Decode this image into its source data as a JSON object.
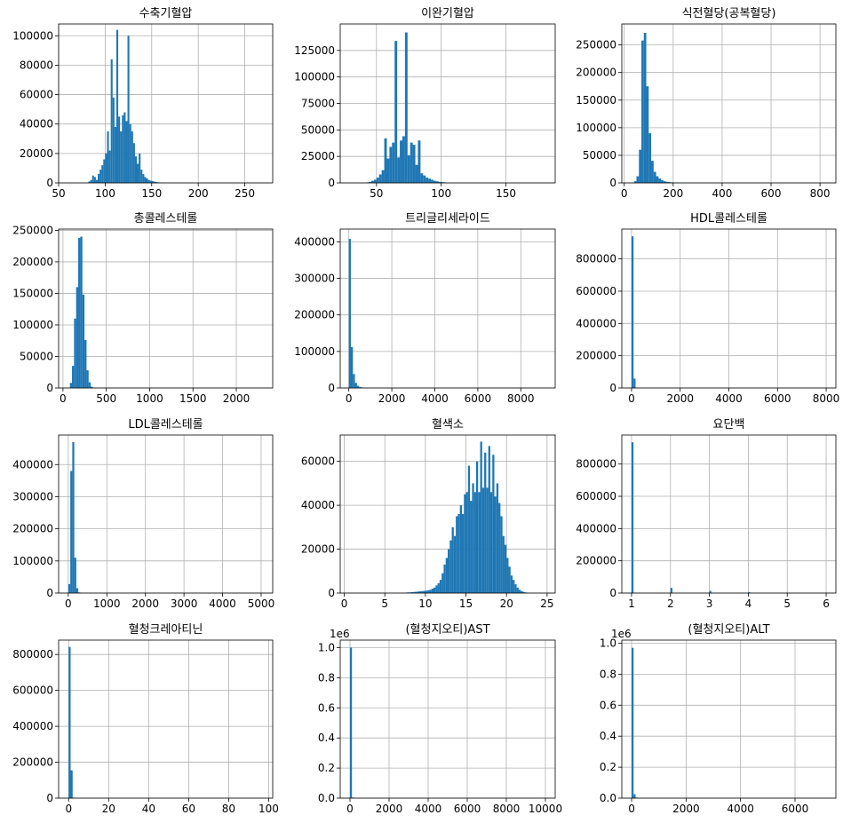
{
  "colors": {
    "bar": "#1f77b4",
    "grid": "#b0b0b0",
    "axis": "#000000"
  },
  "chart_data": [
    {
      "type": "bar",
      "title": "수축기혈압",
      "xlim": [
        50,
        280
      ],
      "ylim": [
        0,
        108000
      ],
      "grid": true,
      "xticks": [
        50,
        100,
        150,
        200,
        250
      ],
      "xtick_labels": [
        "50",
        "100",
        "150",
        "200",
        "250"
      ],
      "yticks": [
        0,
        20000,
        40000,
        60000,
        80000,
        100000
      ],
      "ytick_labels": [
        "0",
        "20000",
        "40000",
        "60000",
        "80000",
        "100000"
      ],
      "bin_start": 82,
      "bin_width": 2,
      "values": [
        1000,
        2000,
        5000,
        4000,
        2000,
        6000,
        9000,
        12000,
        16000,
        20000,
        35000,
        22000,
        84000,
        58000,
        38000,
        104000,
        45000,
        35000,
        46000,
        48000,
        42000,
        100000,
        40000,
        35000,
        27000,
        18000,
        13000,
        20000,
        9000,
        6000,
        4000,
        3000,
        2000,
        1500,
        1200,
        800,
        600,
        400,
        300,
        200
      ]
    },
    {
      "type": "bar",
      "title": "이완기혈압",
      "xlim": [
        22,
        188
      ],
      "ylim": [
        0,
        150000
      ],
      "grid": true,
      "xticks": [
        50,
        100,
        150
      ],
      "xtick_labels": [
        "50",
        "100",
        "150"
      ],
      "yticks": [
        0,
        25000,
        50000,
        75000,
        100000,
        125000
      ],
      "ytick_labels": [
        "0",
        "25000",
        "50000",
        "75000",
        "100000",
        "125000"
      ],
      "bin_start": 42,
      "bin_width": 2,
      "values": [
        500,
        1000,
        2000,
        3000,
        5000,
        8000,
        12000,
        42000,
        23000,
        34000,
        38000,
        134000,
        24000,
        40000,
        44000,
        142000,
        26000,
        38000,
        36000,
        17000,
        40000,
        9000,
        7000,
        5000,
        4000,
        3000,
        2000,
        1500,
        1000,
        700,
        500,
        300,
        200,
        100
      ]
    },
    {
      "type": "bar",
      "title": "식전혈당(공복혈당)",
      "xlim": [
        -10,
        865
      ],
      "ylim": [
        0,
        288000
      ],
      "grid": true,
      "xticks": [
        0,
        200,
        400,
        600,
        800
      ],
      "xtick_labels": [
        "0",
        "200",
        "400",
        "600",
        "800"
      ],
      "yticks": [
        0,
        50000,
        100000,
        150000,
        200000,
        250000
      ],
      "ytick_labels": [
        "0",
        "50000",
        "100000",
        "150000",
        "200000",
        "250000"
      ],
      "bin_start": 40,
      "bin_width": 10,
      "values": [
        3000,
        12000,
        60000,
        258000,
        272000,
        175000,
        90000,
        40000,
        20000,
        12000,
        8000,
        5000,
        3000,
        2000,
        1500,
        1000,
        700,
        500,
        300,
        200
      ]
    },
    {
      "type": "bar",
      "title": "총콜레스테롤",
      "xlim": [
        -50,
        2420
      ],
      "ylim": [
        0,
        252000
      ],
      "grid": true,
      "xticks": [
        0,
        500,
        1000,
        1500,
        2000
      ],
      "xtick_labels": [
        "0",
        "500",
        "1000",
        "1500",
        "2000"
      ],
      "yticks": [
        0,
        50000,
        100000,
        150000,
        200000,
        250000
      ],
      "ytick_labels": [
        "0",
        "50000",
        "100000",
        "150000",
        "200000",
        "250000"
      ],
      "bin_start": 80,
      "bin_width": 24,
      "values": [
        8000,
        35000,
        110000,
        160000,
        238000,
        240000,
        148000,
        76000,
        28000,
        9000,
        2000,
        500
      ]
    },
    {
      "type": "bar",
      "title": "트리글리세라이드",
      "xlim": [
        -400,
        9600
      ],
      "ylim": [
        0,
        435000
      ],
      "grid": true,
      "xticks": [
        0,
        2000,
        4000,
        6000,
        8000
      ],
      "xtick_labels": [
        "0",
        "2000",
        "4000",
        "6000",
        "8000"
      ],
      "yticks": [
        0,
        100000,
        200000,
        300000,
        400000
      ],
      "ytick_labels": [
        "0",
        "100000",
        "200000",
        "300000",
        "400000"
      ],
      "bin_start": 0,
      "bin_width": 95,
      "values": [
        408000,
        112000,
        38000,
        14000,
        6000,
        3000,
        1500,
        800,
        400
      ]
    },
    {
      "type": "bar",
      "title": "HDL콜레스테롤",
      "xlim": [
        -400,
        8400
      ],
      "ylim": [
        0,
        985000
      ],
      "grid": true,
      "xticks": [
        0,
        2000,
        4000,
        6000,
        8000
      ],
      "xtick_labels": [
        "0",
        "2000",
        "4000",
        "6000",
        "8000"
      ],
      "yticks": [
        0,
        200000,
        400000,
        600000,
        800000
      ],
      "ytick_labels": [
        "0",
        "200000",
        "400000",
        "600000",
        "800000"
      ],
      "bin_start": 0,
      "bin_width": 82,
      "values": [
        940000,
        58000,
        2000,
        500
      ]
    },
    {
      "type": "bar",
      "title": "LDL콜레스테롤",
      "xlim": [
        -250,
        5300
      ],
      "ylim": [
        0,
        492000
      ],
      "grid": true,
      "xticks": [
        0,
        1000,
        2000,
        3000,
        4000,
        5000
      ],
      "xtick_labels": [
        "0",
        "1000",
        "2000",
        "3000",
        "4000",
        "5000"
      ],
      "yticks": [
        0,
        100000,
        200000,
        300000,
        400000
      ],
      "ytick_labels": [
        "0",
        "100000",
        "200000",
        "300000",
        "400000"
      ],
      "bin_start": 0,
      "bin_width": 52,
      "values": [
        28000,
        380000,
        470000,
        110000,
        15000,
        2000,
        500
      ]
    },
    {
      "type": "bar",
      "title": "혈색소",
      "xlim": [
        -0.5,
        26
      ],
      "ylim": [
        0,
        72000
      ],
      "grid": true,
      "xticks": [
        0,
        5,
        10,
        15,
        20,
        25
      ],
      "xtick_labels": [
        "0",
        "5",
        "10",
        "15",
        "20",
        "25"
      ],
      "yticks": [
        0,
        20000,
        40000,
        60000
      ],
      "ytick_labels": [
        "0",
        "20000",
        "40000",
        "60000"
      ],
      "bin_start": 7.5,
      "bin_width": 0.25,
      "values": [
        200,
        300,
        300,
        400,
        500,
        600,
        700,
        800,
        900,
        1000,
        1100,
        1300,
        1500,
        2000,
        2500,
        3500,
        4500,
        6000,
        9000,
        13000,
        16000,
        20000,
        24000,
        30000,
        26000,
        35000,
        36000,
        40000,
        36000,
        45000,
        46000,
        58000,
        42000,
        50000,
        46000,
        60000,
        46000,
        69000,
        48000,
        64000,
        48000,
        67000,
        46000,
        63000,
        44000,
        50000,
        41000,
        35000,
        26000,
        22000,
        16000,
        12000,
        8000,
        6000,
        4000,
        2500,
        1500,
        900,
        500,
        300
      ]
    },
    {
      "type": "bar",
      "title": "요단백",
      "xlim": [
        0.75,
        6.25
      ],
      "ylim": [
        0,
        980000
      ],
      "grid": true,
      "xticks": [
        1,
        2,
        3,
        4,
        5,
        6
      ],
      "xtick_labels": [
        "1",
        "2",
        "3",
        "4",
        "5",
        "6"
      ],
      "yticks": [
        0,
        200000,
        400000,
        600000,
        800000
      ],
      "ytick_labels": [
        "0",
        "200000",
        "400000",
        "600000",
        "800000"
      ],
      "bin_start": 1,
      "bin_width": 0.05,
      "bars": [
        {
          "x": 1,
          "value": 935000
        },
        {
          "x": 2,
          "value": 32000
        },
        {
          "x": 3,
          "value": 14000
        },
        {
          "x": 4,
          "value": 5000
        },
        {
          "x": 5,
          "value": 2000
        },
        {
          "x": 6,
          "value": 1000
        }
      ]
    },
    {
      "type": "bar",
      "title": "혈청크레아티닌",
      "xlim": [
        -5,
        102
      ],
      "ylim": [
        0,
        880000
      ],
      "grid": true,
      "xticks": [
        0,
        20,
        40,
        60,
        80,
        100
      ],
      "xtick_labels": [
        "0",
        "20",
        "40",
        "60",
        "80",
        "100"
      ],
      "yticks": [
        0,
        200000,
        400000,
        600000,
        800000
      ],
      "ytick_labels": [
        "0",
        "200000",
        "400000",
        "600000",
        "800000"
      ],
      "bin_start": 0,
      "bin_width": 1,
      "values": [
        842000,
        155000,
        3000,
        500
      ]
    },
    {
      "type": "bar",
      "title": "(혈청지오티)AST",
      "xlim": [
        -500,
        10500
      ],
      "ylim": [
        0,
        1.05
      ],
      "grid": true,
      "offset_label": "1e6",
      "xticks": [
        0,
        2000,
        4000,
        6000,
        8000,
        10000
      ],
      "xtick_labels": [
        "0",
        "2000",
        "4000",
        "6000",
        "8000",
        "10000"
      ],
      "yticks": [
        0,
        0.2,
        0.4,
        0.6,
        0.8,
        1.0
      ],
      "ytick_labels": [
        "0.0",
        "0.2",
        "0.4",
        "0.6",
        "0.8",
        "1.0"
      ],
      "bin_start": 0,
      "bin_width": 100,
      "values": [
        1.0,
        0.004,
        0.001
      ]
    },
    {
      "type": "bar",
      "title": "(혈청지오티)ALT",
      "xlim": [
        -360,
        7500
      ],
      "ylim": [
        0,
        1.02
      ],
      "grid": true,
      "offset_label": "1e6",
      "xticks": [
        0,
        2000,
        4000,
        6000
      ],
      "xtick_labels": [
        "0",
        "2000",
        "4000",
        "6000"
      ],
      "yticks": [
        0,
        0.2,
        0.4,
        0.6,
        0.8,
        1.0
      ],
      "ytick_labels": [
        "0.0",
        "0.2",
        "0.4",
        "0.6",
        "0.8",
        "1.0"
      ],
      "bin_start": 0,
      "bin_width": 72,
      "values": [
        0.97,
        0.025,
        0.004,
        0.001
      ]
    }
  ]
}
